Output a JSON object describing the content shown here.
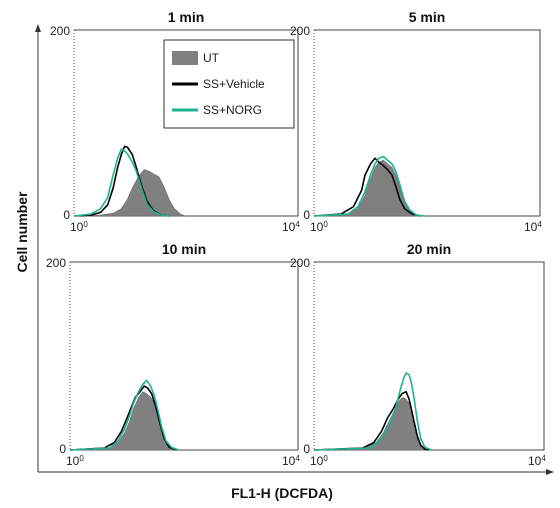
{
  "chart_data": {
    "type": "histogram",
    "xlabel": "FL1-H (DCFDA)",
    "ylabel": "Cell number",
    "x_scale": "log",
    "xlim": [
      1,
      10000
    ],
    "ylim": [
      0,
      200
    ],
    "x_tick_labels": [
      "10^0",
      "10^4"
    ],
    "y_tick_labels": [
      "0",
      "200"
    ],
    "legend": {
      "placement": "top-right of first panel",
      "entries": [
        {
          "name": "UT",
          "color": "#808080",
          "style": "filled"
        },
        {
          "name": "SS+Vehicle",
          "color": "#000000",
          "style": "line"
        },
        {
          "name": "SS+NORG",
          "color": "#1db38f",
          "style": "line"
        }
      ]
    },
    "panels": [
      {
        "title": "1 min",
        "series": [
          {
            "name": "UT",
            "values": [
              [
                1,
                0
              ],
              [
                3,
                1
              ],
              [
                5,
                3
              ],
              [
                7,
                8
              ],
              [
                9,
                18
              ],
              [
                11,
                30
              ],
              [
                14,
                42
              ],
              [
                18,
                50
              ],
              [
                22,
                48
              ],
              [
                27,
                45
              ],
              [
                33,
                42
              ],
              [
                40,
                32
              ],
              [
                50,
                18
              ],
              [
                62,
                8
              ],
              [
                80,
                2
              ],
              [
                100,
                0
              ]
            ]
          },
          {
            "name": "SS+Vehicle",
            "values": [
              [
                1,
                0
              ],
              [
                2,
                1
              ],
              [
                3,
                4
              ],
              [
                4,
                12
              ],
              [
                5,
                30
              ],
              [
                6,
                52
              ],
              [
                7,
                66
              ],
              [
                8,
                75
              ],
              [
                9,
                74
              ],
              [
                11,
                66
              ],
              [
                13,
                52
              ],
              [
                16,
                33
              ],
              [
                20,
                16
              ],
              [
                26,
                6
              ],
              [
                35,
                1
              ],
              [
                50,
                0
              ]
            ]
          },
          {
            "name": "SS+NORG",
            "values": [
              [
                1,
                0
              ],
              [
                2,
                2
              ],
              [
                3,
                8
              ],
              [
                4,
                20
              ],
              [
                5,
                44
              ],
              [
                6,
                62
              ],
              [
                7,
                72
              ],
              [
                8,
                70
              ],
              [
                9,
                67
              ],
              [
                11,
                58
              ],
              [
                13,
                48
              ],
              [
                16,
                30
              ],
              [
                20,
                13
              ],
              [
                26,
                5
              ],
              [
                35,
                1
              ],
              [
                50,
                0
              ]
            ]
          }
        ]
      },
      {
        "title": "5 min",
        "series": [
          {
            "name": "UT",
            "values": [
              [
                1,
                0
              ],
              [
                4,
                2
              ],
              [
                6,
                8
              ],
              [
                8,
                22
              ],
              [
                10,
                40
              ],
              [
                12,
                52
              ],
              [
                14,
                58
              ],
              [
                17,
                60
              ],
              [
                20,
                56
              ],
              [
                24,
                52
              ],
              [
                28,
                44
              ],
              [
                33,
                30
              ],
              [
                40,
                14
              ],
              [
                50,
                5
              ],
              [
                65,
                1
              ],
              [
                90,
                0
              ]
            ]
          },
          {
            "name": "SS+Vehicle",
            "values": [
              [
                1,
                0
              ],
              [
                3,
                2
              ],
              [
                5,
                10
              ],
              [
                7,
                28
              ],
              [
                8,
                44
              ],
              [
                10,
                56
              ],
              [
                12,
                62
              ],
              [
                14,
                58
              ],
              [
                17,
                54
              ],
              [
                20,
                50
              ],
              [
                24,
                44
              ],
              [
                28,
                32
              ],
              [
                33,
                18
              ],
              [
                40,
                8
              ],
              [
                55,
                2
              ],
              [
                80,
                0
              ]
            ]
          },
          {
            "name": "SS+NORG",
            "values": [
              [
                1,
                0
              ],
              [
                4,
                2
              ],
              [
                6,
                10
              ],
              [
                8,
                26
              ],
              [
                10,
                44
              ],
              [
                12,
                56
              ],
              [
                14,
                62
              ],
              [
                17,
                64
              ],
              [
                20,
                60
              ],
              [
                24,
                56
              ],
              [
                28,
                48
              ],
              [
                33,
                34
              ],
              [
                40,
                16
              ],
              [
                50,
                6
              ],
              [
                65,
                1
              ],
              [
                90,
                0
              ]
            ]
          }
        ]
      },
      {
        "title": "10 min",
        "series": [
          {
            "name": "UT",
            "values": [
              [
                1,
                0
              ],
              [
                5,
                2
              ],
              [
                7,
                8
              ],
              [
                9,
                18
              ],
              [
                11,
                30
              ],
              [
                13,
                44
              ],
              [
                16,
                56
              ],
              [
                19,
                62
              ],
              [
                22,
                60
              ],
              [
                26,
                56
              ],
              [
                30,
                50
              ],
              [
                35,
                38
              ],
              [
                40,
                24
              ],
              [
                48,
                10
              ],
              [
                60,
                3
              ],
              [
                80,
                0
              ]
            ]
          },
          {
            "name": "SS+Vehicle",
            "values": [
              [
                1,
                0
              ],
              [
                4,
                2
              ],
              [
                6,
                8
              ],
              [
                8,
                20
              ],
              [
                10,
                34
              ],
              [
                12,
                46
              ],
              [
                14,
                56
              ],
              [
                17,
                62
              ],
              [
                20,
                68
              ],
              [
                23,
                66
              ],
              [
                27,
                60
              ],
              [
                32,
                46
              ],
              [
                38,
                28
              ],
              [
                45,
                12
              ],
              [
                55,
                3
              ],
              [
                75,
                0
              ]
            ]
          },
          {
            "name": "SS+NORG",
            "values": [
              [
                1,
                0
              ],
              [
                5,
                2
              ],
              [
                7,
                10
              ],
              [
                9,
                22
              ],
              [
                11,
                36
              ],
              [
                13,
                50
              ],
              [
                16,
                62
              ],
              [
                19,
                70
              ],
              [
                22,
                74
              ],
              [
                26,
                68
              ],
              [
                30,
                58
              ],
              [
                35,
                42
              ],
              [
                40,
                26
              ],
              [
                48,
                10
              ],
              [
                60,
                3
              ],
              [
                80,
                0
              ]
            ]
          }
        ]
      },
      {
        "title": "20 min",
        "series": [
          {
            "name": "UT",
            "values": [
              [
                1,
                0
              ],
              [
                8,
                2
              ],
              [
                12,
                8
              ],
              [
                16,
                18
              ],
              [
                20,
                30
              ],
              [
                25,
                42
              ],
              [
                30,
                52
              ],
              [
                35,
                56
              ],
              [
                40,
                54
              ],
              [
                45,
                50
              ],
              [
                50,
                42
              ],
              [
                56,
                30
              ],
              [
                63,
                16
              ],
              [
                72,
                6
              ],
              [
                85,
                1
              ],
              [
                100,
                0
              ]
            ]
          },
          {
            "name": "SS+Vehicle",
            "values": [
              [
                1,
                0
              ],
              [
                7,
                2
              ],
              [
                11,
                8
              ],
              [
                15,
                20
              ],
              [
                19,
                34
              ],
              [
                24,
                44
              ],
              [
                29,
                54
              ],
              [
                34,
                60
              ],
              [
                40,
                62
              ],
              [
                45,
                54
              ],
              [
                50,
                42
              ],
              [
                56,
                28
              ],
              [
                63,
                14
              ],
              [
                72,
                5
              ],
              [
                85,
                1
              ],
              [
                100,
                0
              ]
            ]
          },
          {
            "name": "SS+NORG",
            "values": [
              [
                1,
                0
              ],
              [
                9,
                2
              ],
              [
                13,
                8
              ],
              [
                17,
                18
              ],
              [
                21,
                30
              ],
              [
                26,
                44
              ],
              [
                31,
                62
              ],
              [
                36,
                76
              ],
              [
                40,
                82
              ],
              [
                45,
                80
              ],
              [
                50,
                70
              ],
              [
                56,
                52
              ],
              [
                63,
                30
              ],
              [
                72,
                12
              ],
              [
                85,
                3
              ],
              [
                110,
                0
              ]
            ]
          }
        ]
      }
    ]
  }
}
